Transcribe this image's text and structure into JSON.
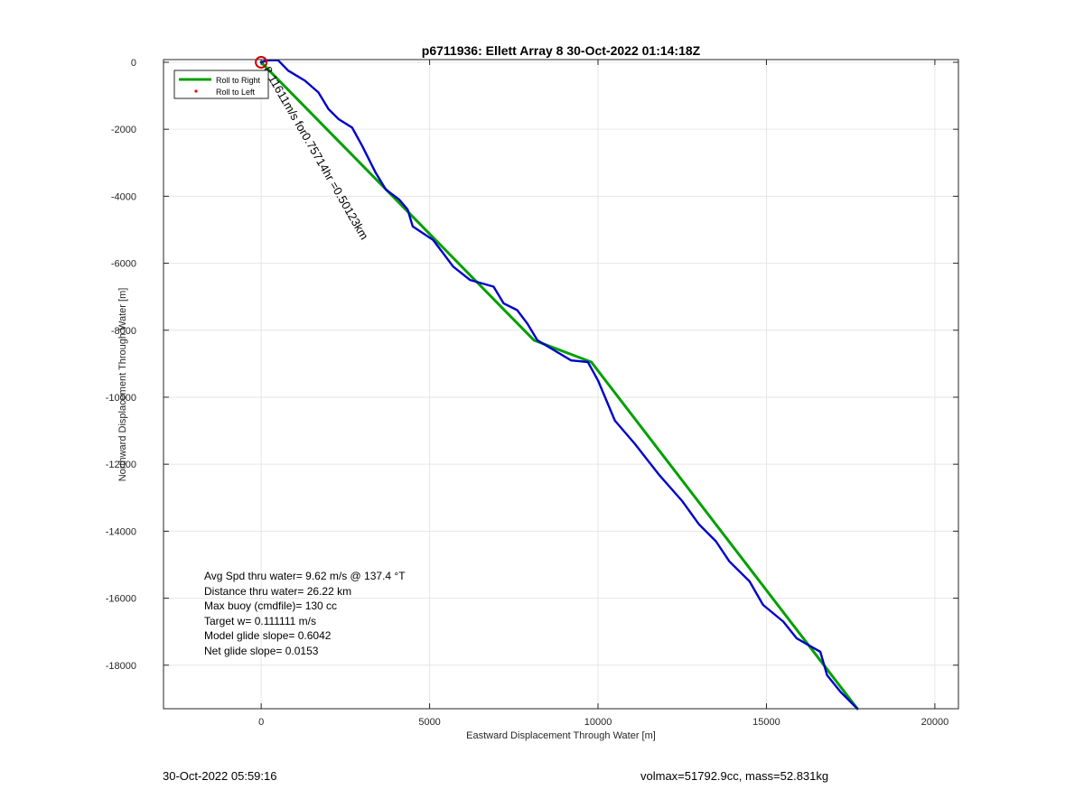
{
  "chart_data": {
    "type": "line",
    "title": "p6711936: Ellett Array 8 30-Oct-2022 01:14:18Z",
    "xlabel": "Eastward Displacement Through Water [m]",
    "ylabel": "Northward Displacement Through Water [m]",
    "xlim": [
      -2900,
      20700
    ],
    "ylim": [
      -19300,
      80
    ],
    "x_ticks": [
      0,
      5000,
      10000,
      15000,
      20000
    ],
    "y_ticks": [
      0,
      -2000,
      -4000,
      -6000,
      -8000,
      -10000,
      -12000,
      -14000,
      -16000,
      -18000,
      -19300
    ],
    "grid": true,
    "legend": {
      "placement": "top-left",
      "entries": [
        {
          "label": "Roll to Right",
          "color": "#00a000",
          "style": "line"
        },
        {
          "label": "Roll to Left",
          "color": "#ff0000",
          "style": "dot"
        }
      ]
    },
    "series": [
      {
        "color": "#00a000",
        "x": [
          0,
          9800,
          17700
        ],
        "y": [
          0,
          -8950,
          -19300
        ],
        "points": [
          [
            0,
            0
          ],
          [
            8100,
            -8300
          ],
          [
            9800,
            -8950
          ],
          [
            17700,
            -19300
          ]
        ]
      },
      {
        "color": "#0000cc",
        "points": [
          [
            0,
            0
          ],
          [
            200,
            60
          ],
          [
            500,
            60
          ],
          [
            800,
            -250
          ],
          [
            1300,
            -550
          ],
          [
            1700,
            -900
          ],
          [
            2000,
            -1400
          ],
          [
            2300,
            -1700
          ],
          [
            2700,
            -1950
          ],
          [
            3000,
            -2500
          ],
          [
            3400,
            -3300
          ],
          [
            3700,
            -3800
          ],
          [
            4100,
            -4100
          ],
          [
            4350,
            -4400
          ],
          [
            4500,
            -4900
          ],
          [
            4800,
            -5100
          ],
          [
            5100,
            -5300
          ],
          [
            5400,
            -5700
          ],
          [
            5700,
            -6100
          ],
          [
            6200,
            -6500
          ],
          [
            6900,
            -6700
          ],
          [
            7200,
            -7200
          ],
          [
            7600,
            -7400
          ],
          [
            7900,
            -7800
          ],
          [
            8200,
            -8300
          ],
          [
            8700,
            -8600
          ],
          [
            9200,
            -8900
          ],
          [
            9700,
            -8950
          ],
          [
            10000,
            -9500
          ],
          [
            10500,
            -10700
          ],
          [
            11100,
            -11400
          ],
          [
            11800,
            -12300
          ],
          [
            12500,
            -13100
          ],
          [
            13000,
            -13800
          ],
          [
            13500,
            -14300
          ],
          [
            13900,
            -14900
          ],
          [
            14500,
            -15500
          ],
          [
            14900,
            -16200
          ],
          [
            15500,
            -16700
          ],
          [
            15900,
            -17200
          ],
          [
            16600,
            -17600
          ],
          [
            16800,
            -18300
          ],
          [
            17200,
            -18800
          ],
          [
            17700,
            -19300
          ]
        ]
      }
    ],
    "annotations": {
      "marker_label": "8.11611m/s for0.75714hr =0.50123km",
      "stats": [
        "Avg Spd thru water=  9.62 m/s @ 137.4 °T",
        "Distance thru water= 26.22 km",
        "Max buoy (cmdfile)= 130 cc",
        "Target w= 0.111111 m/s",
        "Model glide slope= 0.6042",
        "Net glide slope= 0.0153"
      ]
    }
  },
  "footer": {
    "timestamp": "30-Oct-2022 05:59:16",
    "info": "volmax=51792.9cc, mass=52.831kg"
  }
}
